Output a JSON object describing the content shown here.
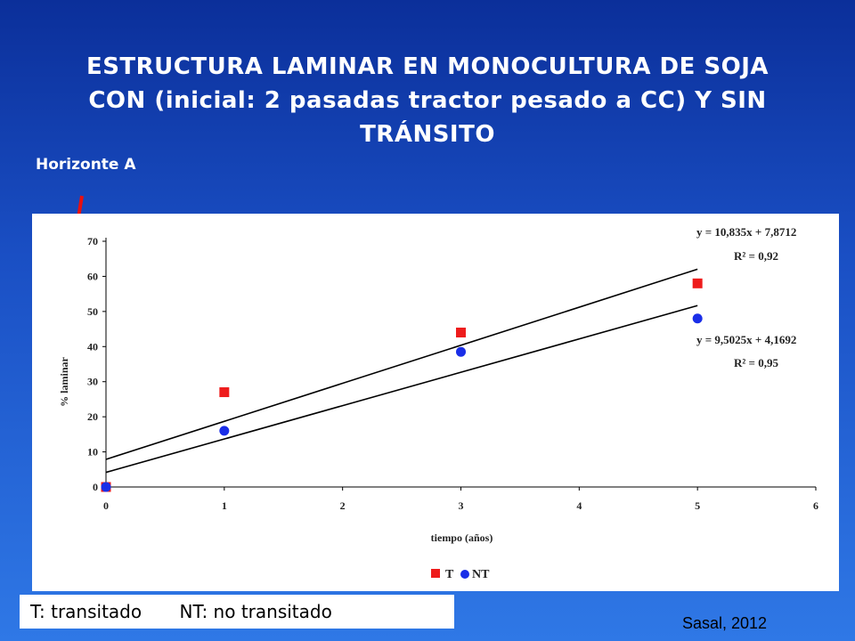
{
  "title_lines": [
    "ESTRUCTURA LAMINAR EN MONOCULTURA DE SOJA",
    "CON (inicial: 2 pasadas tractor pesado a CC) Y SIN",
    "TRÁNSITO"
  ],
  "annotation": "Horizonte A",
  "footnote": {
    "t_label": "T: transitado",
    "nt_label": "NT: no transitado"
  },
  "source": "Sasal, 2012",
  "colors": {
    "T": "#ee1c1c",
    "NT": "#1a2ee8",
    "arrow": "#e81010"
  },
  "chart_data": {
    "type": "scatter",
    "xlabel": "tiempo (años)",
    "ylabel": "% laminar",
    "xlim": [
      0,
      6
    ],
    "ylim": [
      0,
      70
    ],
    "xticks": [
      "0",
      "1",
      "2",
      "3",
      "4",
      "5",
      "6"
    ],
    "yticks": [
      "0",
      "10",
      "20",
      "30",
      "40",
      "50",
      "60",
      "70"
    ],
    "series": [
      {
        "name": "T",
        "marker": "square",
        "x": [
          0,
          1,
          3,
          5
        ],
        "y": [
          0,
          27,
          44,
          58
        ],
        "trend": {
          "slope": 10.835,
          "intercept": 7.8712,
          "x_range": [
            0,
            5
          ]
        },
        "equation": "y = 10,835x + 7,8712",
        "r2": "R² = 0,92"
      },
      {
        "name": "NT",
        "marker": "circle",
        "x": [
          0,
          1,
          3,
          5
        ],
        "y": [
          0,
          16,
          38.5,
          48
        ],
        "trend": {
          "slope": 9.5025,
          "intercept": 4.1692,
          "x_range": [
            0,
            5
          ]
        },
        "equation": "y = 9,5025x + 4,1692",
        "r2": "R² = 0,95"
      }
    ],
    "legend": [
      "T",
      "NT"
    ],
    "grid": false
  }
}
